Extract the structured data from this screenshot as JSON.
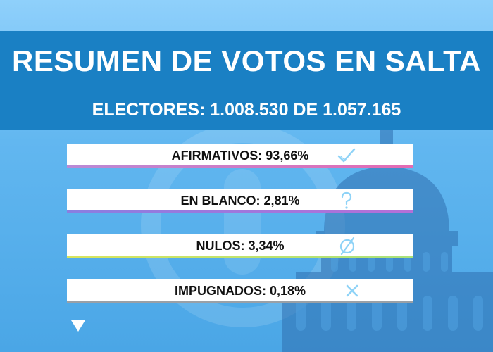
{
  "title": "RESUMEN DE VOTOS EN SALTA",
  "subtitle": "ELECTORES: 1.008.530 DE 1.057.165",
  "results": [
    {
      "label": "AFIRMATIVOS: 93,66%",
      "icon": "check-icon",
      "color": "#e46bb3"
    },
    {
      "label": "EN BLANCO: 2,81%",
      "icon": "question-mark-icon",
      "color": "#b56fd7"
    },
    {
      "label": "NULOS: 3,34%",
      "icon": "empty-set-icon",
      "color": "#c9e060"
    },
    {
      "label": "IMPUGNADOS: 0,18%",
      "icon": "x-icon",
      "color": "#9aa0a6"
    }
  ],
  "colors": {
    "header": "#1a80c4",
    "icon": "#8fd3f7",
    "background": "#62b7f0"
  }
}
